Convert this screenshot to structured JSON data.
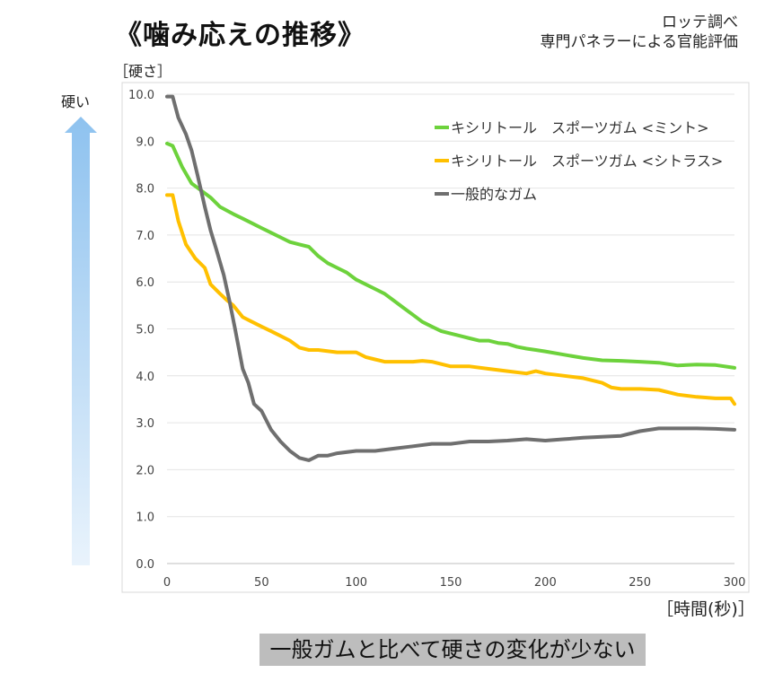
{
  "header": {
    "title": "《噛み応えの推移》",
    "source_line1": "ロッテ調べ",
    "source_line2": "専門パネラーによる官能評価"
  },
  "side": {
    "arrow_label": "硬い"
  },
  "caption": "一般ガムと比べて硬さの変化が少ない",
  "colors": {
    "mint": "#6dd23c",
    "citrus": "#ffc000",
    "general": "#6f6f6f",
    "grid": "#e4e4e4",
    "arrow": "#8ec2ef"
  },
  "chart_data": {
    "type": "line",
    "title": "《噛み応えの推移》",
    "ylabel": "［硬さ］",
    "xlabel": "［時間(秒)］",
    "xlim": [
      0,
      300
    ],
    "ylim": [
      0,
      10
    ],
    "xticks": [
      0,
      50,
      100,
      150,
      200,
      250,
      300
    ],
    "xtick_labels": [
      "0",
      "50",
      "100",
      "150",
      "200",
      "250",
      "300"
    ],
    "yticks": [
      0,
      1,
      2,
      3,
      4,
      5,
      6,
      7,
      8,
      9,
      10
    ],
    "ytick_labels": [
      "0.0",
      "1.0",
      "2.0",
      "3.0",
      "4.0",
      "5.0",
      "6.0",
      "7.0",
      "8.0",
      "9.0",
      "10.0"
    ],
    "grid": "horizontal",
    "legend_position": "top-right",
    "series": [
      {
        "name": "キシリトール　スポーツガム <ミント>",
        "color_key": "mint",
        "x": [
          0,
          3,
          8,
          13,
          18,
          23,
          28,
          35,
          40,
          45,
          50,
          55,
          60,
          65,
          70,
          75,
          80,
          85,
          90,
          95,
          100,
          105,
          110,
          115,
          120,
          125,
          130,
          135,
          140,
          145,
          150,
          155,
          160,
          165,
          170,
          175,
          180,
          185,
          190,
          195,
          200,
          210,
          220,
          230,
          240,
          250,
          260,
          270,
          280,
          290,
          300
        ],
        "values": [
          8.95,
          8.9,
          8.45,
          8.1,
          7.95,
          7.8,
          7.6,
          7.45,
          7.35,
          7.25,
          7.15,
          7.05,
          6.95,
          6.85,
          6.8,
          6.75,
          6.55,
          6.4,
          6.3,
          6.2,
          6.05,
          5.95,
          5.85,
          5.75,
          5.6,
          5.45,
          5.3,
          5.15,
          5.05,
          4.95,
          4.9,
          4.85,
          4.8,
          4.75,
          4.75,
          4.7,
          4.68,
          4.62,
          4.58,
          4.55,
          4.52,
          4.45,
          4.38,
          4.33,
          4.32,
          4.3,
          4.28,
          4.22,
          4.24,
          4.23,
          4.17
        ]
      },
      {
        "name": "キシリトール　スポーツガム <シトラス>",
        "color_key": "citrus",
        "x": [
          0,
          3,
          6,
          10,
          15,
          20,
          23,
          28,
          32,
          35,
          40,
          45,
          50,
          55,
          60,
          65,
          70,
          75,
          80,
          90,
          100,
          105,
          110,
          115,
          120,
          130,
          135,
          140,
          150,
          160,
          170,
          180,
          190,
          195,
          200,
          210,
          220,
          230,
          235,
          240,
          250,
          260,
          270,
          280,
          290,
          298,
          300
        ],
        "values": [
          7.85,
          7.85,
          7.3,
          6.8,
          6.5,
          6.3,
          5.95,
          5.75,
          5.6,
          5.5,
          5.25,
          5.15,
          5.05,
          4.95,
          4.85,
          4.75,
          4.6,
          4.55,
          4.55,
          4.5,
          4.5,
          4.4,
          4.35,
          4.3,
          4.3,
          4.3,
          4.32,
          4.3,
          4.2,
          4.2,
          4.15,
          4.1,
          4.05,
          4.1,
          4.05,
          4.0,
          3.95,
          3.85,
          3.75,
          3.72,
          3.72,
          3.7,
          3.6,
          3.55,
          3.52,
          3.52,
          3.4
        ]
      },
      {
        "name": "一般的なガム",
        "color_key": "general",
        "x": [
          0,
          3,
          6,
          10,
          13,
          16,
          20,
          23,
          26,
          30,
          33,
          36,
          40,
          43,
          46,
          50,
          55,
          60,
          65,
          70,
          75,
          80,
          85,
          90,
          100,
          110,
          120,
          130,
          140,
          150,
          160,
          170,
          180,
          190,
          200,
          210,
          220,
          230,
          240,
          250,
          260,
          270,
          280,
          290,
          300
        ],
        "values": [
          9.95,
          9.95,
          9.5,
          9.15,
          8.8,
          8.3,
          7.6,
          7.1,
          6.7,
          6.15,
          5.6,
          5.0,
          4.15,
          3.85,
          3.4,
          3.25,
          2.85,
          2.6,
          2.4,
          2.25,
          2.2,
          2.3,
          2.3,
          2.35,
          2.4,
          2.4,
          2.45,
          2.5,
          2.55,
          2.55,
          2.6,
          2.6,
          2.62,
          2.65,
          2.62,
          2.65,
          2.68,
          2.7,
          2.72,
          2.82,
          2.88,
          2.88,
          2.88,
          2.87,
          2.85
        ]
      }
    ]
  }
}
